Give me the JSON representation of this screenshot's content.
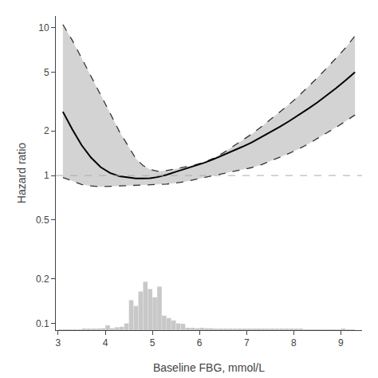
{
  "chart_data": {
    "type": "line",
    "xlabel": "Baseline FBG, mmol/L",
    "ylabel": "Hazard ratio",
    "log": "y",
    "grid": false,
    "xlim": [
      2.95,
      9.45
    ],
    "ylim": [
      0.09,
      12.0
    ],
    "xticks": [
      3,
      4,
      5,
      6,
      7,
      8,
      9
    ],
    "yticks": [
      0.1,
      0.2,
      0.5,
      1,
      2,
      5,
      10
    ],
    "y2lim": [
      0,
      650
    ],
    "x": [
      3.1,
      3.3,
      3.5,
      3.7,
      3.9,
      4.1,
      4.3,
      4.5,
      4.65,
      4.8,
      4.95,
      5.1,
      5.3,
      5.5,
      5.7,
      5.9,
      6.1,
      6.3,
      6.5,
      6.7,
      6.9,
      7.1,
      7.3,
      7.5,
      7.7,
      7.9,
      8.1,
      8.3,
      8.5,
      8.7,
      8.9,
      9.1,
      9.3
    ],
    "series": [
      {
        "type": "bar",
        "axis": "y2",
        "color": "#c8c8c8",
        "x": [
          3.05,
          3.15,
          3.25,
          3.35,
          3.45,
          3.55,
          3.65,
          3.75,
          3.85,
          3.95,
          4.05,
          4.15,
          4.25,
          4.35,
          4.45,
          4.55,
          4.65,
          4.75,
          4.85,
          4.95,
          5.05,
          5.15,
          5.25,
          5.35,
          5.45,
          5.55,
          5.65,
          5.75,
          5.85,
          5.95,
          6.05,
          6.15,
          6.25,
          6.35,
          6.45,
          6.55,
          6.65,
          6.75,
          6.85,
          6.95,
          7.05,
          7.15,
          7.25,
          7.35,
          7.45,
          7.55,
          7.65,
          7.75,
          7.85,
          7.95,
          8.05,
          8.15,
          8.25,
          8.35,
          8.45,
          8.55,
          8.65,
          8.75,
          8.85,
          8.95,
          9.05,
          9.15,
          9.25
        ],
        "values": [
          1,
          1,
          1,
          1,
          1,
          2,
          2,
          3,
          3,
          4,
          10,
          4,
          6,
          7,
          14,
          62,
          50,
          80,
          100,
          85,
          68,
          90,
          30,
          25,
          20,
          14,
          13,
          5,
          5,
          4,
          5,
          4,
          4,
          3,
          3,
          3,
          2,
          2,
          2,
          2,
          2,
          3,
          2,
          2,
          2,
          2,
          2,
          2,
          2,
          2,
          2,
          2,
          1,
          1,
          1,
          1,
          1,
          1,
          1,
          1,
          2,
          1,
          1
        ]
      },
      {
        "type": "band",
        "color": "#d3d3d3",
        "lower": [
          0.97,
          0.92,
          0.87,
          0.85,
          0.84,
          0.845,
          0.85,
          0.855,
          0.855,
          0.855,
          0.86,
          0.865,
          0.875,
          0.89,
          0.91,
          0.94,
          0.97,
          1.0,
          1.03,
          1.06,
          1.09,
          1.13,
          1.18,
          1.25,
          1.32,
          1.41,
          1.51,
          1.63,
          1.78,
          1.94,
          2.12,
          2.33,
          2.57
        ],
        "upper": [
          10.5,
          8.2,
          6.2,
          4.7,
          3.5,
          2.65,
          1.98,
          1.55,
          1.3,
          1.17,
          1.1,
          1.07,
          1.08,
          1.11,
          1.14,
          1.18,
          1.23,
          1.31,
          1.42,
          1.56,
          1.72,
          1.9,
          2.12,
          2.38,
          2.68,
          3.02,
          3.44,
          3.96,
          4.58,
          5.32,
          6.2,
          7.3,
          8.8
        ]
      },
      {
        "type": "line",
        "line_style": "dashed",
        "color": "#333333",
        "values": [
          10.5,
          8.2,
          6.2,
          4.7,
          3.5,
          2.65,
          1.98,
          1.55,
          1.3,
          1.17,
          1.1,
          1.07,
          1.08,
          1.11,
          1.14,
          1.18,
          1.23,
          1.31,
          1.42,
          1.56,
          1.72,
          1.9,
          2.12,
          2.38,
          2.68,
          3.02,
          3.44,
          3.96,
          4.58,
          5.32,
          6.2,
          7.3,
          8.8
        ]
      },
      {
        "type": "line",
        "line_style": "dashed",
        "color": "#333333",
        "values": [
          0.97,
          0.92,
          0.87,
          0.85,
          0.84,
          0.845,
          0.85,
          0.855,
          0.855,
          0.855,
          0.86,
          0.865,
          0.875,
          0.89,
          0.91,
          0.94,
          0.97,
          1.0,
          1.03,
          1.06,
          1.09,
          1.13,
          1.18,
          1.25,
          1.32,
          1.41,
          1.51,
          1.63,
          1.78,
          1.94,
          2.12,
          2.33,
          2.57
        ]
      },
      {
        "type": "line",
        "line_style": "solid",
        "color": "#000000",
        "values": [
          2.7,
          2.05,
          1.6,
          1.32,
          1.14,
          1.04,
          0.99,
          0.965,
          0.955,
          0.955,
          0.96,
          0.975,
          1.01,
          1.06,
          1.11,
          1.17,
          1.22,
          1.29,
          1.37,
          1.46,
          1.56,
          1.67,
          1.81,
          1.96,
          2.13,
          2.33,
          2.55,
          2.82,
          3.12,
          3.48,
          3.9,
          4.4,
          5.0
        ]
      },
      {
        "type": "hline",
        "y": 1.0,
        "color": "#aaaaaa",
        "line_style": "dashed"
      }
    ]
  }
}
